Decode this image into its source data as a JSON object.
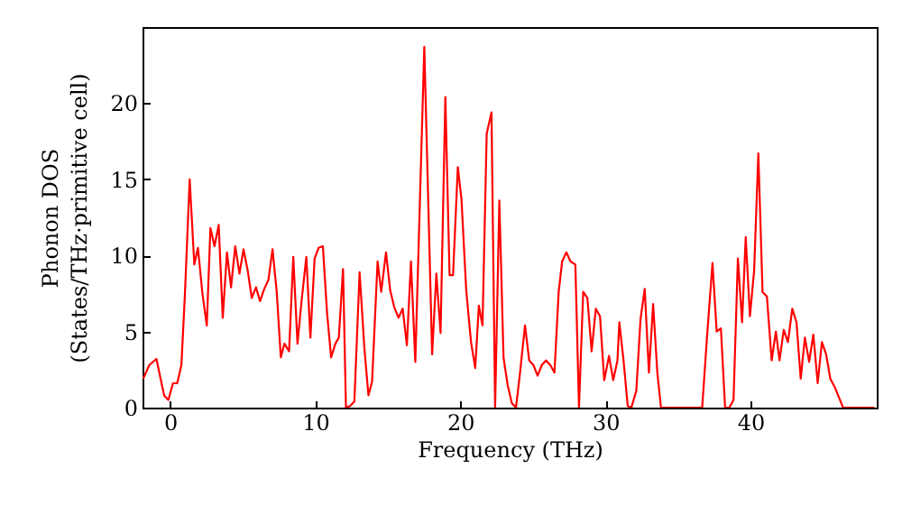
{
  "chart_data": {
    "type": "line",
    "xlabel": "Frequency (THz)",
    "ylabel": "Phonon DOS\n(States/THz·primitive cell)",
    "xlim": [
      -1.9,
      48.7
    ],
    "ylim": [
      0,
      25
    ],
    "xticks": [
      0,
      10,
      20,
      30,
      40
    ],
    "yticks": [
      0,
      5,
      10,
      15,
      20
    ],
    "grid": false,
    "series": [
      {
        "color": "#ff0000",
        "x": [
          -1.85,
          -1.43,
          -0.94,
          -0.61,
          -0.41,
          -0.12,
          0.2,
          0.49,
          0.78,
          1.02,
          1.35,
          1.67,
          1.92,
          2.24,
          2.53,
          2.78,
          3.06,
          3.35,
          3.63,
          3.92,
          4.2,
          4.49,
          4.78,
          5.06,
          5.35,
          5.63,
          5.92,
          6.2,
          6.49,
          6.78,
          7.06,
          7.35,
          7.63,
          7.88,
          8.2,
          8.49,
          8.78,
          9.06,
          9.39,
          9.67,
          9.96,
          10.24,
          10.53,
          10.82,
          11.1,
          11.39,
          11.63,
          11.92,
          12.12,
          12.4,
          12.7,
          13.06,
          13.39,
          13.67,
          13.92,
          14.3,
          14.55,
          14.88,
          15.17,
          15.45,
          15.74,
          16.03,
          16.32,
          16.6,
          16.9,
          17.52,
          18.06,
          18.35,
          18.64,
          18.97,
          19.26,
          19.5,
          19.83,
          20.08,
          20.41,
          20.74,
          21.03,
          21.28,
          21.53,
          21.82,
          22.15,
          22.4,
          22.69,
          22.98,
          23.26,
          23.55,
          23.84,
          24.13,
          24.46,
          24.75,
          25.04,
          25.33,
          25.62,
          25.91,
          26.2,
          26.49,
          26.78,
          27.02,
          27.31,
          27.6,
          27.93,
          28.18,
          28.47,
          28.76,
          29.05,
          29.34,
          29.63,
          29.92,
          30.25,
          30.54,
          30.83,
          30.96,
          31.25,
          31.54,
          31.79,
          32.13,
          32.42,
          32.71,
          33.0,
          33.29,
          33.58,
          33.83,
          36.67,
          37.0,
          37.38,
          37.67,
          37.96,
          38.25,
          38.54,
          38.83,
          39.13,
          39.42,
          39.67,
          39.96,
          40.25,
          40.54,
          40.83,
          41.13,
          41.46,
          41.75,
          42.0,
          42.29,
          42.58,
          42.88,
          43.17,
          43.46,
          43.75,
          44.04,
          44.33,
          44.63,
          44.92,
          45.21,
          45.5,
          45.83,
          46.38,
          48.54
        ],
        "values": [
          1.9,
          2.8,
          3.2,
          1.7,
          0.8,
          0.5,
          1.6,
          1.6,
          2.8,
          7.4,
          15.0,
          9.4,
          10.5,
          7.4,
          5.4,
          11.8,
          10.6,
          12.0,
          5.9,
          10.2,
          7.9,
          10.6,
          8.8,
          10.4,
          9.0,
          7.2,
          7.9,
          7.0,
          7.8,
          8.4,
          10.4,
          7.6,
          3.3,
          4.2,
          3.7,
          9.9,
          4.2,
          7.0,
          9.9,
          4.6,
          9.8,
          10.5,
          10.6,
          6.2,
          3.3,
          4.2,
          4.6,
          9.1,
          0,
          0.1,
          0.4,
          8.9,
          3.9,
          0.8,
          1.7,
          9.6,
          7.6,
          10.2,
          7.7,
          6.6,
          5.9,
          6.5,
          4.1,
          9.6,
          3.0,
          23.7,
          3.5,
          8.8,
          4.9,
          20.4,
          8.7,
          8.7,
          15.8,
          13.7,
          7.7,
          4.3,
          2.6,
          6.7,
          5.4,
          18.0,
          19.4,
          0,
          13.6,
          3.3,
          1.5,
          0.3,
          0,
          2.4,
          5.4,
          3.1,
          2.8,
          2.1,
          2.8,
          3.1,
          2.8,
          2.3,
          7.6,
          9.6,
          10.2,
          9.6,
          9.4,
          0,
          7.6,
          7.2,
          3.7,
          6.5,
          6.0,
          1.8,
          3.4,
          1.8,
          3.1,
          5.6,
          3.1,
          0.1,
          0,
          1.1,
          5.8,
          7.8,
          2.3,
          6.8,
          2.3,
          0,
          0,
          4.6,
          9.5,
          5.0,
          5.2,
          0,
          0,
          0.5,
          9.8,
          5.6,
          11.2,
          6.0,
          9.0,
          16.7,
          7.6,
          7.3,
          3.1,
          5.0,
          3.1,
          5.1,
          4.3,
          6.5,
          5.6,
          1.9,
          4.6,
          3.0,
          4.8,
          1.6,
          4.3,
          3.5,
          1.9,
          1.3,
          0,
          0
        ]
      }
    ]
  }
}
